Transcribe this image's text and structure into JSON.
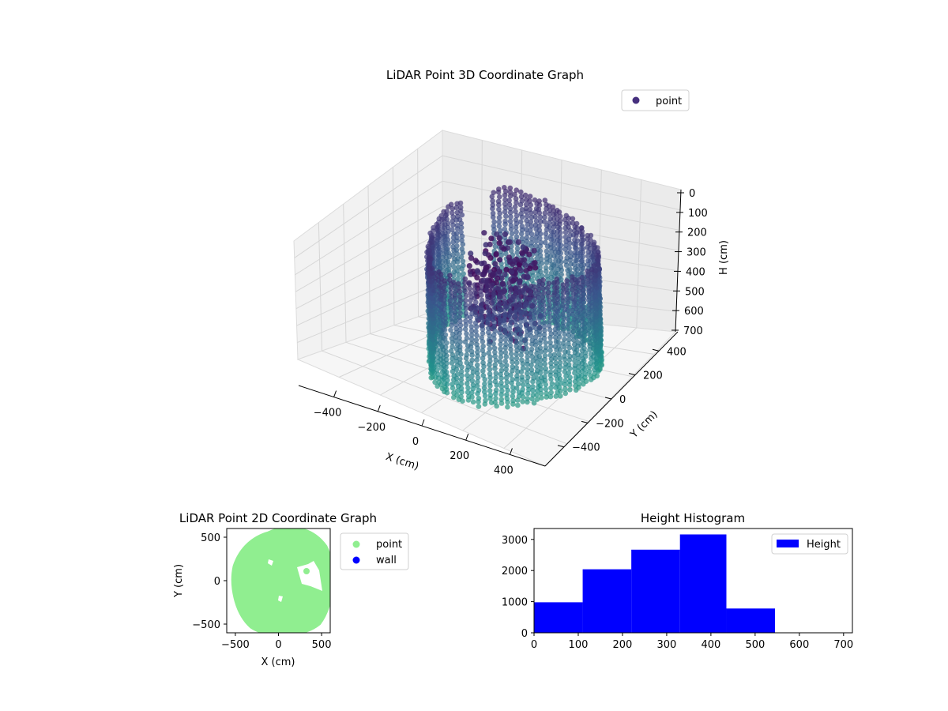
{
  "chart_data": [
    {
      "type": "scatter",
      "projection": "3d",
      "title": "LiDAR Point 3D Coordinate Graph",
      "xlabel": "X (cm)",
      "ylabel": "Y (cm)",
      "zlabel": "H (cm)",
      "xticks": [
        -400,
        -200,
        0,
        200,
        400
      ],
      "yticks": [
        -400,
        -200,
        0,
        200,
        400
      ],
      "zticks": [
        0,
        100,
        200,
        300,
        400,
        500,
        600,
        700
      ],
      "xlim": [
        -560,
        560
      ],
      "ylim": [
        -560,
        560
      ],
      "zlim": [
        0,
        700
      ],
      "zaxis_inverted": true,
      "legend": {
        "position": "top-right",
        "entries": [
          {
            "name": "point",
            "color": "#46307e"
          }
        ]
      },
      "colormap": "viridis",
      "grid": true
    },
    {
      "type": "scatter",
      "title": "LiDAR Point 2D Coordinate Graph",
      "xlabel": "X (cm)",
      "ylabel": "Y (cm)",
      "xticks": [
        -500,
        0,
        500
      ],
      "yticks": [
        -500,
        0,
        500
      ],
      "xlim": [
        -600,
        600
      ],
      "ylim": [
        -600,
        600
      ],
      "legend": {
        "position": "outside-right",
        "entries": [
          {
            "name": "point",
            "color": "#90ee90"
          },
          {
            "name": "wall",
            "color": "#0000ff"
          }
        ]
      },
      "grid": false
    },
    {
      "type": "bar",
      "title": "Height Histogram",
      "xticks": [
        0,
        100,
        200,
        300,
        400,
        500,
        600,
        700
      ],
      "yticks": [
        0,
        1000,
        2000,
        3000
      ],
      "xlim": [
        0,
        720
      ],
      "ylim": [
        0,
        3350
      ],
      "bins": [
        {
          "x0": 0,
          "x1": 110,
          "value": 980
        },
        {
          "x0": 110,
          "x1": 220,
          "value": 2040
        },
        {
          "x0": 220,
          "x1": 330,
          "value": 2670
        },
        {
          "x0": 330,
          "x1": 435,
          "value": 3160
        },
        {
          "x0": 435,
          "x1": 545,
          "value": 780
        }
      ],
      "color": "#0000ff",
      "legend": {
        "position": "top-right",
        "entries": [
          {
            "name": "Height",
            "color": "#0000ff"
          }
        ]
      },
      "grid": false
    }
  ]
}
